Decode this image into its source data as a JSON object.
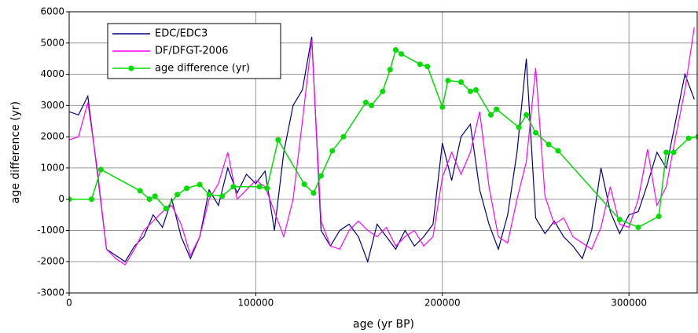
{
  "chart_data": {
    "type": "line",
    "x_label": "age (yr BP)",
    "y_label": "age difference (yr)",
    "xlim": [
      0,
      337000
    ],
    "ylim": [
      -3000,
      6000
    ],
    "xticks": [
      0,
      100000,
      200000,
      300000
    ],
    "yticks": [
      -3000,
      -2000,
      -1000,
      0,
      1000,
      2000,
      3000,
      4000,
      5000,
      6000
    ],
    "grid": true,
    "legend": "upper left",
    "series": [
      {
        "name": "EDC/EDC3",
        "color": "#000080",
        "markers": false,
        "x": [
          0,
          5000,
          10000,
          15000,
          20000,
          25000,
          30000,
          35000,
          40000,
          45000,
          50000,
          55000,
          60000,
          65000,
          70000,
          75000,
          80000,
          85000,
          90000,
          95000,
          100000,
          105000,
          110000,
          115000,
          120000,
          125000,
          130000,
          135000,
          140000,
          145000,
          150000,
          155000,
          160000,
          165000,
          170000,
          175000,
          180000,
          185000,
          190000,
          195000,
          200000,
          205000,
          210000,
          215000,
          220000,
          225000,
          230000,
          235000,
          240000,
          245000,
          250000,
          255000,
          260000,
          265000,
          270000,
          275000,
          280000,
          285000,
          290000,
          295000,
          300000,
          305000,
          310000,
          315000,
          320000,
          325000,
          330000,
          335000
        ],
        "values": [
          2800,
          2700,
          3300,
          900,
          -1600,
          -1800,
          -2000,
          -1500,
          -1200,
          -500,
          -900,
          0,
          -1200,
          -1900,
          -1200,
          300,
          -200,
          1000,
          200,
          800,
          500,
          900,
          -1000,
          1500,
          3000,
          3500,
          5200,
          -1000,
          -1500,
          -1000,
          -800,
          -1200,
          -2000,
          -800,
          -1200,
          -1600,
          -1000,
          -1500,
          -1200,
          -800,
          1800,
          600,
          2000,
          2400,
          300,
          -800,
          -1600,
          -500,
          1500,
          4500,
          -600,
          -1100,
          -700,
          -1200,
          -1500,
          -1900,
          -1000,
          1000,
          -400,
          -1100,
          -500,
          -400,
          500,
          1500,
          1000,
          2500,
          4000,
          3200
        ]
      },
      {
        "name": "DF/DFGT-2006",
        "color": "#ff00ff",
        "markers": false,
        "x": [
          0,
          5000,
          10000,
          15000,
          20000,
          25000,
          30000,
          35000,
          40000,
          45000,
          50000,
          55000,
          60000,
          65000,
          70000,
          75000,
          80000,
          85000,
          90000,
          95000,
          100000,
          105000,
          110000,
          115000,
          120000,
          125000,
          130000,
          135000,
          140000,
          145000,
          150000,
          155000,
          160000,
          165000,
          170000,
          175000,
          180000,
          185000,
          190000,
          195000,
          200000,
          205000,
          210000,
          215000,
          220000,
          225000,
          230000,
          235000,
          240000,
          245000,
          250000,
          255000,
          260000,
          265000,
          270000,
          275000,
          280000,
          285000,
          290000,
          295000,
          300000,
          305000,
          310000,
          315000,
          320000,
          325000,
          330000,
          335000
        ],
        "values": [
          1900,
          2000,
          3100,
          1000,
          -1600,
          -1900,
          -2100,
          -1600,
          -1000,
          -700,
          -400,
          -200,
          -800,
          -1800,
          -1200,
          0,
          500,
          1500,
          0,
          300,
          600,
          400,
          -400,
          -1200,
          0,
          2500,
          5100,
          -700,
          -1500,
          -1600,
          -1000,
          -700,
          -1000,
          -1200,
          -900,
          -1500,
          -1200,
          -1000,
          -1500,
          -1200,
          700,
          1500,
          800,
          1500,
          2800,
          400,
          -1200,
          -1400,
          0,
          1200,
          4200,
          100,
          -800,
          -600,
          -1200,
          -1400,
          -1600,
          -900,
          400,
          -800,
          -900,
          0,
          1600,
          -200,
          400,
          2000,
          3500,
          5500
        ]
      },
      {
        "name": "age difference (yr)",
        "color": "#00dd00",
        "markers": true,
        "x": [
          0,
          12000,
          17000,
          38000,
          43000,
          46000,
          52000,
          58000,
          63000,
          70000,
          75000,
          82000,
          88000,
          102000,
          106000,
          112000,
          126000,
          131000,
          135000,
          141000,
          147000,
          159000,
          162000,
          168000,
          172000,
          175000,
          178000,
          188000,
          192000,
          200000,
          203000,
          210000,
          215000,
          218000,
          226000,
          229000,
          241000,
          245000,
          250000,
          257000,
          262000,
          295000,
          305000,
          316000,
          320000,
          324000,
          332000,
          337000
        ],
        "values": [
          0,
          0,
          950,
          270,
          0,
          100,
          -300,
          150,
          350,
          470,
          150,
          100,
          400,
          400,
          350,
          1900,
          480,
          200,
          750,
          1550,
          2000,
          3100,
          3000,
          3450,
          4150,
          4780,
          4650,
          4320,
          4250,
          2950,
          3800,
          3750,
          3450,
          3500,
          2700,
          2880,
          2300,
          2700,
          2130,
          1750,
          1550,
          -650,
          -900,
          -550,
          1500,
          1500,
          1950,
          2000
        ]
      }
    ]
  }
}
